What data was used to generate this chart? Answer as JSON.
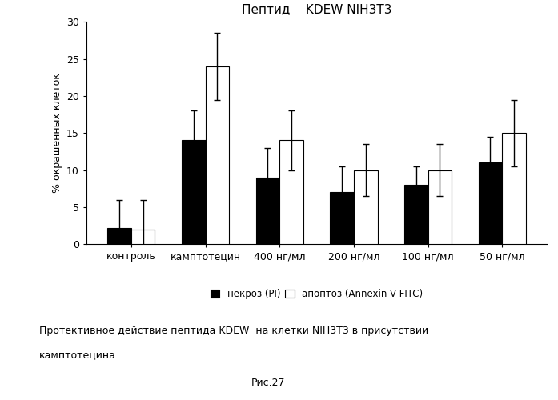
{
  "title": "Пептид    KDEW NIH3T3",
  "ylabel": "% окрашенных клеток",
  "categories": [
    "контроль",
    "камптотецин",
    "400 нг/мл",
    "200 нг/мл",
    "100 нг/мл",
    "50 нг/мл"
  ],
  "necrosis_values": [
    2.2,
    14.0,
    9.0,
    7.0,
    8.0,
    11.0
  ],
  "apoptosis_values": [
    2.0,
    24.0,
    14.0,
    10.0,
    10.0,
    15.0
  ],
  "necrosis_errors": [
    3.8,
    4.0,
    4.0,
    3.5,
    2.5,
    3.5
  ],
  "apoptosis_errors": [
    4.0,
    4.5,
    4.0,
    3.5,
    3.5,
    4.5
  ],
  "ylim": [
    0,
    30
  ],
  "yticks": [
    0,
    5,
    10,
    15,
    20,
    25,
    30
  ],
  "bar_width": 0.32,
  "necrosis_color": "#000000",
  "apoptosis_color": "#ffffff",
  "legend_necrosis": "некроз (PI)",
  "legend_apoptosis": "апоптоз (Annexin-V FITC)",
  "caption_line1": "Протективное действие пептида KDEW  на клетки NIH3T3 в присутствии",
  "caption_line2": "камптотецина.",
  "figure_label": "Рис.27",
  "background_color": "#ffffff",
  "edge_color": "#000000"
}
